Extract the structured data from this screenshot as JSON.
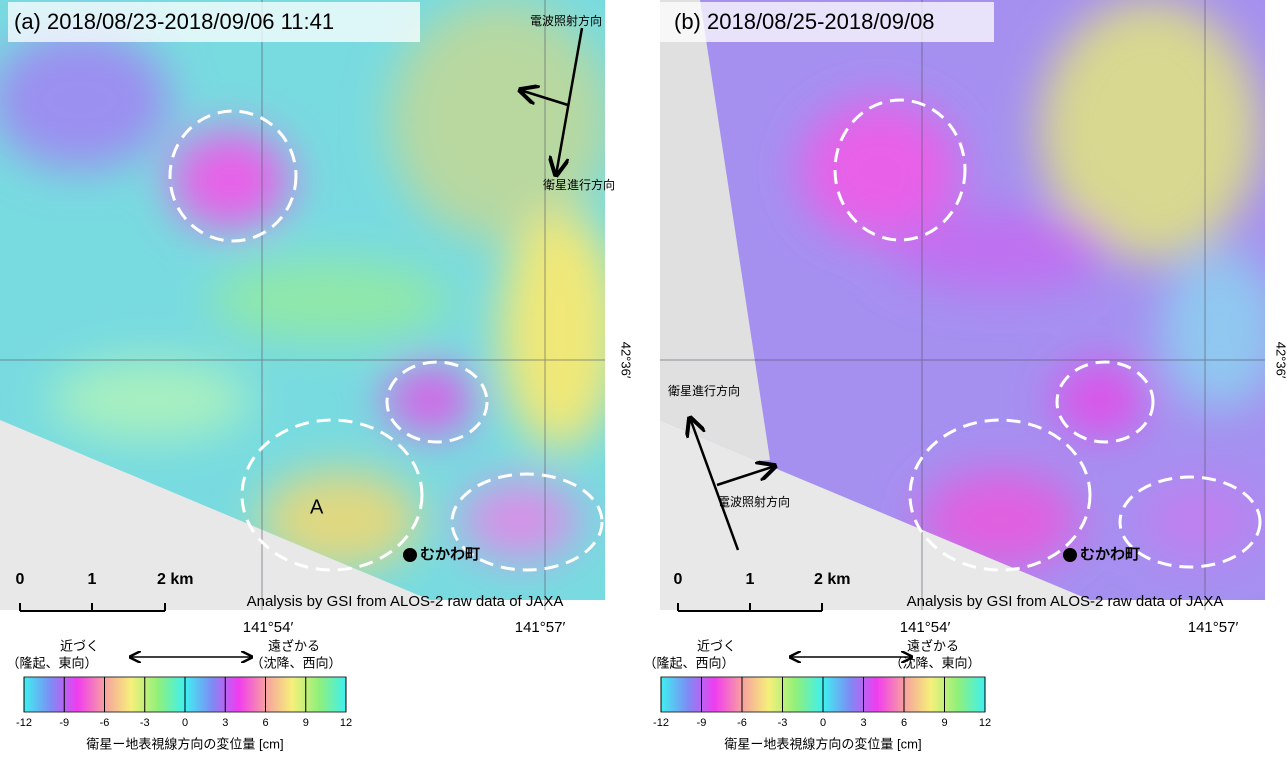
{
  "panels": [
    {
      "title": "(a) 2018/08/23-2018/09/06 11:41",
      "radar_direction": "電波照射方向",
      "flight_direction": "衛星進行方向",
      "lat_label": "42°36′",
      "lon_labels": [
        "141°54′",
        "141°57′"
      ],
      "place": "むかわ町",
      "area_label": "A",
      "credit": "Analysis by GSI from ALOS-2 raw data of JAXA",
      "scale_labels": [
        "0",
        "1",
        "2 km"
      ],
      "legend": {
        "near": "近づく",
        "near_note": "（隆起、東向）",
        "far": "遠ざかる",
        "far_note": "（沈降、西向）",
        "ticks": [
          -12,
          -9,
          -6,
          -3,
          0,
          3,
          6,
          9,
          12
        ],
        "axis_label": "衛星ー地表視線方向の変位量 [cm]"
      }
    },
    {
      "title": "(b) 2018/08/25-2018/09/08",
      "radar_direction": "電波照射方向",
      "flight_direction": "衛星進行方向",
      "lat_label": "42°36′",
      "lon_labels": [
        "141°54′",
        "141°57′"
      ],
      "place": "むかわ町",
      "credit": "Analysis by GSI from ALOS-2 raw data of JAXA",
      "scale_labels": [
        "0",
        "1",
        "2 km"
      ],
      "legend": {
        "near": "近づく",
        "near_note": "（隆起、西向）",
        "far": "遠ざかる",
        "far_note": "（沈降、東向）",
        "ticks": [
          -12,
          -9,
          -6,
          -3,
          0,
          3,
          6,
          9,
          12
        ],
        "axis_label": "衛星ー地表視線方向の変位量 [cm]"
      }
    }
  ]
}
